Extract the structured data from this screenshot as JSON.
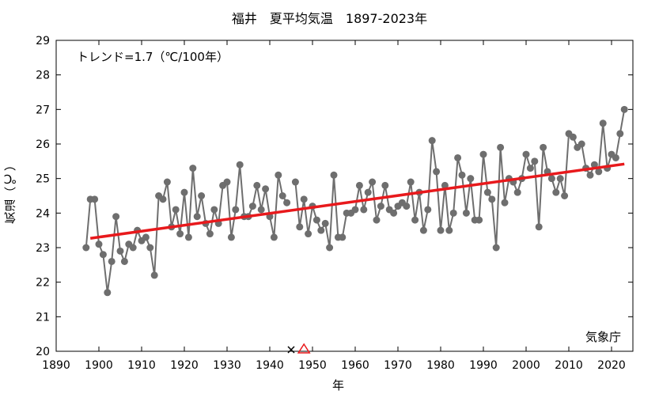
{
  "chart_data": {
    "type": "line",
    "title": "福井　夏平均気温　1897-2023年",
    "xlabel": "年",
    "ylabel": "気温（℃）",
    "xlim": [
      1890,
      2025
    ],
    "ylim": [
      20,
      29
    ],
    "xticks": [
      1890,
      1900,
      1910,
      1920,
      1930,
      1940,
      1950,
      1960,
      1970,
      1980,
      1990,
      2000,
      2010,
      2020
    ],
    "yticks": [
      20,
      21,
      22,
      23,
      24,
      25,
      26,
      27,
      28,
      29
    ],
    "grid": false,
    "trend_label": "トレンド=1.7（℃/100年）",
    "credit": "気象庁",
    "colors": {
      "series": "#6e6e6e",
      "trend": "#e8191c",
      "relocation": "#e8191c",
      "missing": "#000000"
    },
    "series": [
      {
        "x": [
          1897,
          1898,
          1899,
          1900,
          1901,
          1902,
          1903,
          1904,
          1905,
          1906,
          1907,
          1908,
          1909,
          1910,
          1911,
          1912,
          1913,
          1914,
          1915,
          1916,
          1917,
          1918,
          1919,
          1920,
          1921,
          1922,
          1923,
          1924,
          1925,
          1926,
          1927,
          1928,
          1929,
          1930,
          1931,
          1932,
          1933,
          1934,
          1935,
          1936,
          1937,
          1938,
          1939,
          1940,
          1941,
          1942,
          1943,
          1944,
          1945,
          1946,
          1947,
          1948,
          1949,
          1950,
          1951,
          1952,
          1953,
          1954,
          1955,
          1956,
          1957,
          1958,
          1959,
          1960,
          1961,
          1962,
          1963,
          1964,
          1965,
          1966,
          1967,
          1968,
          1969,
          1970,
          1971,
          1972,
          1973,
          1974,
          1975,
          1976,
          1977,
          1978,
          1979,
          1980,
          1981,
          1982,
          1983,
          1984,
          1985,
          1986,
          1987,
          1988,
          1989,
          1990,
          1991,
          1992,
          1993,
          1994,
          1995,
          1996,
          1997,
          1998,
          1999,
          2000,
          2001,
          2002,
          2003,
          2004,
          2005,
          2006,
          2007,
          2008,
          2009,
          2010,
          2011,
          2012,
          2013,
          2014,
          2015,
          2016,
          2017,
          2018,
          2019,
          2020,
          2021,
          2022,
          2023
        ],
        "y": [
          23.0,
          24.4,
          24.4,
          23.1,
          22.8,
          21.7,
          22.6,
          23.9,
          22.9,
          22.6,
          23.1,
          23.0,
          23.5,
          23.2,
          23.3,
          23.0,
          22.2,
          24.5,
          24.4,
          24.9,
          23.6,
          24.1,
          23.4,
          24.6,
          23.3,
          25.3,
          23.9,
          24.5,
          23.7,
          23.4,
          24.1,
          23.7,
          24.8,
          24.9,
          23.3,
          24.1,
          25.4,
          23.9,
          23.9,
          24.2,
          24.8,
          24.1,
          24.7,
          23.9,
          23.3,
          25.1,
          24.5,
          24.3,
          null,
          24.9,
          23.6,
          24.4,
          23.4,
          24.2,
          23.8,
          23.5,
          23.7,
          23.0,
          25.1,
          23.3,
          23.3,
          24.0,
          24.0,
          24.1,
          24.8,
          24.1,
          24.6,
          24.9,
          23.8,
          24.2,
          24.8,
          24.1,
          24.0,
          24.2,
          24.3,
          24.2,
          24.9,
          23.8,
          24.6,
          23.5,
          24.1,
          26.1,
          25.2,
          23.5,
          24.8,
          23.5,
          24.0,
          25.6,
          25.1,
          24.0,
          25.0,
          23.8,
          23.8,
          25.7,
          24.6,
          24.4,
          23.0,
          25.9,
          24.3,
          25.0,
          24.9,
          24.6,
          25.0,
          25.7,
          25.3,
          25.5,
          23.6,
          25.9,
          25.2,
          25.0,
          24.6,
          25.0,
          24.5,
          26.3,
          26.2,
          25.9,
          26.0,
          25.3,
          25.1,
          25.4,
          25.2,
          26.6,
          25.3,
          25.7,
          25.6,
          26.3,
          27.0
        ]
      }
    ],
    "trend": {
      "x": [
        1898,
        2023
      ],
      "y": [
        23.27,
        25.42
      ]
    },
    "markers": [
      {
        "kind": "cross",
        "x": 1945,
        "y": 20
      },
      {
        "kind": "triangle",
        "x": 1948,
        "y": 20
      }
    ]
  }
}
